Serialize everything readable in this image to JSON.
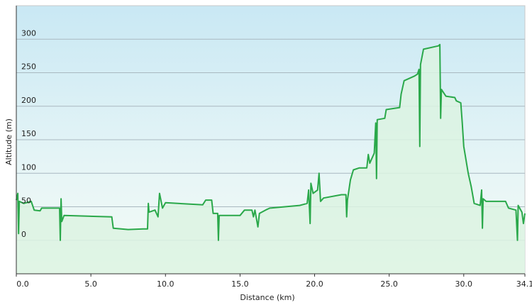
{
  "chart_data": {
    "type": "area-line",
    "x_label": "Distance  (km)",
    "y_label": "Altitude (m)",
    "color": "#2aa84a",
    "fill_color": "#dcf3e2",
    "x": [
      0.0,
      0.1,
      0.15,
      0.2,
      0.5,
      1.0,
      1.2,
      1.6,
      1.7,
      2.9,
      2.95,
      3.0,
      3.05,
      3.2,
      6.4,
      6.5,
      7.5,
      8.5,
      8.8,
      8.85,
      8.9,
      9.3,
      9.5,
      9.6,
      9.8,
      10.0,
      12.5,
      12.7,
      13.1,
      13.2,
      13.5,
      13.55,
      13.6,
      15.0,
      15.3,
      15.8,
      15.9,
      16.0,
      16.2,
      16.3,
      16.8,
      17.0,
      19.0,
      19.5,
      19.6,
      19.7,
      19.75,
      19.9,
      20.2,
      20.3,
      20.4,
      20.6,
      21.8,
      22.1,
      22.15,
      22.2,
      22.4,
      22.6,
      23.0,
      23.5,
      23.6,
      23.7,
      24.0,
      24.1,
      24.15,
      24.2,
      24.7,
      24.8,
      25.7,
      25.8,
      26.0,
      26.7,
      26.9,
      27.0,
      27.05,
      27.1,
      27.3,
      28.3,
      28.4,
      28.45,
      28.5,
      28.8,
      29.4,
      29.5,
      29.8,
      29.9,
      30.0,
      30.3,
      30.5,
      30.7,
      31.1,
      31.2,
      31.25,
      31.3,
      31.5,
      32.8,
      33.0,
      33.5,
      33.6,
      33.65,
      33.9,
      34.0,
      34.1
    ],
    "values": [
      60,
      70,
      10,
      58,
      55,
      58,
      45,
      44,
      48,
      48,
      0,
      62,
      28,
      37,
      35,
      18,
      16,
      17,
      17,
      55,
      42,
      45,
      35,
      70,
      48,
      56,
      53,
      60,
      60,
      40,
      40,
      0,
      37,
      37,
      45,
      45,
      35,
      45,
      20,
      40,
      46,
      48,
      52,
      55,
      75,
      25,
      85,
      70,
      75,
      100,
      58,
      63,
      68,
      68,
      35,
      60,
      90,
      105,
      108,
      108,
      128,
      115,
      130,
      175,
      92,
      180,
      182,
      195,
      198,
      218,
      238,
      245,
      248,
      255,
      140,
      262,
      285,
      290,
      292,
      182,
      225,
      215,
      213,
      208,
      205,
      175,
      140,
      100,
      80,
      55,
      52,
      75,
      18,
      62,
      58,
      58,
      48,
      45,
      0,
      52,
      42,
      25,
      40
    ],
    "xlim": [
      0,
      34.1
    ],
    "xticks": [
      {
        "value": 0,
        "label": "0.0"
      },
      {
        "value": 5,
        "label": "5.0"
      },
      {
        "value": 10,
        "label": "10.0"
      },
      {
        "value": 15,
        "label": "15.0"
      },
      {
        "value": 20,
        "label": "20.0"
      },
      {
        "value": 25,
        "label": "25.0"
      },
      {
        "value": 30,
        "label": "30.0"
      },
      34.1
    ],
    "ylim": [
      -50,
      350
    ],
    "yticks": [
      0,
      50,
      100,
      150,
      200,
      250,
      300
    ],
    "grid": true
  }
}
